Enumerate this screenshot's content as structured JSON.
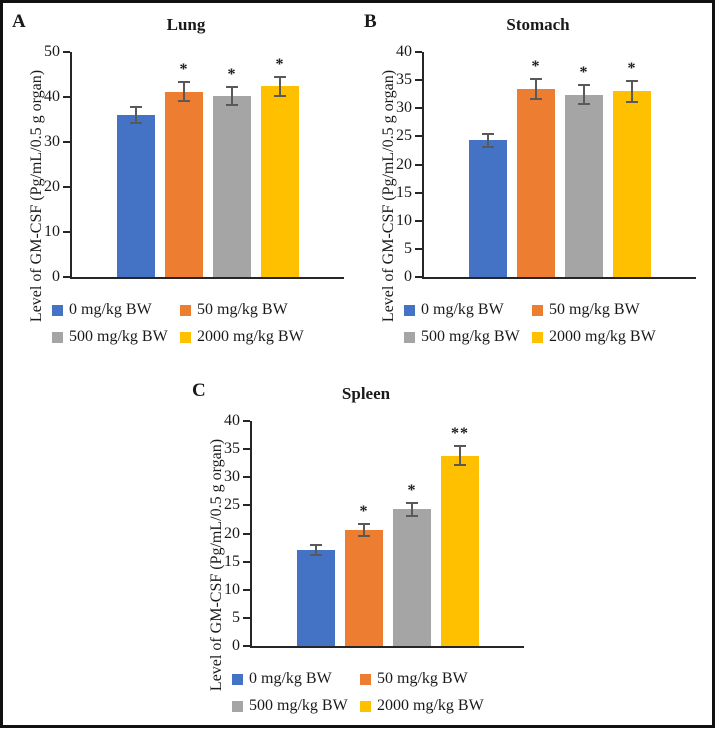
{
  "legend": {
    "items": [
      {
        "label": "0 mg/kg BW",
        "color": "#4472C4"
      },
      {
        "label": "50 mg/kg BW",
        "color": "#ED7D31"
      },
      {
        "label": "500 mg/kg BW",
        "color": "#A5A5A5"
      },
      {
        "label": "2000 mg/kg BW",
        "color": "#FFC000"
      }
    ]
  },
  "chart_data": [
    {
      "type": "bar",
      "panel_label": "A",
      "title": "Lung",
      "xlabel": "",
      "ylabel": "Level of GM-CSF (Pg/mL/0.5 g organ)",
      "ylim": [
        0,
        50
      ],
      "ytick_step": 10,
      "grid": false,
      "legend_position": "bottom",
      "categories": [
        "0 mg/kg BW",
        "50 mg/kg BW",
        "500 mg/kg BW",
        "2000 mg/kg BW"
      ],
      "values": [
        36.0,
        41.2,
        40.2,
        42.4
      ],
      "errors": [
        1.8,
        2.1,
        2.0,
        2.1
      ],
      "significance": [
        "",
        "*",
        "*",
        "*"
      ],
      "bar_colors": [
        "#4472C4",
        "#ED7D31",
        "#A5A5A5",
        "#FFC000"
      ]
    },
    {
      "type": "bar",
      "panel_label": "B",
      "title": "Stomach",
      "xlabel": "",
      "ylabel": "Level of GM-CSF (Pg/mL/0.5 g organ)",
      "ylim": [
        0,
        40
      ],
      "ytick_step": 5,
      "grid": false,
      "legend_position": "bottom",
      "categories": [
        "0 mg/kg BW",
        "50 mg/kg BW",
        "500 mg/kg BW",
        "2000 mg/kg BW"
      ],
      "values": [
        24.3,
        33.4,
        32.4,
        33.0
      ],
      "errors": [
        1.2,
        1.8,
        1.7,
        1.8
      ],
      "significance": [
        "",
        "*",
        "*",
        "*"
      ],
      "bar_colors": [
        "#4472C4",
        "#ED7D31",
        "#A5A5A5",
        "#FFC000"
      ]
    },
    {
      "type": "bar",
      "panel_label": "C",
      "title": "Spleen",
      "xlabel": "",
      "ylabel": "Level of GM-CSF (Pg/mL/0.5 g organ)",
      "ylim": [
        0,
        40
      ],
      "ytick_step": 5,
      "grid": false,
      "legend_position": "bottom",
      "categories": [
        "0 mg/kg BW",
        "50 mg/kg BW",
        "500 mg/kg BW",
        "2000 mg/kg BW"
      ],
      "values": [
        17.0,
        20.6,
        24.3,
        33.8
      ],
      "errors": [
        0.9,
        1.1,
        1.2,
        1.7
      ],
      "significance": [
        "",
        "*",
        "*",
        "**"
      ],
      "bar_colors": [
        "#4472C4",
        "#ED7D31",
        "#A5A5A5",
        "#FFC000"
      ]
    }
  ]
}
